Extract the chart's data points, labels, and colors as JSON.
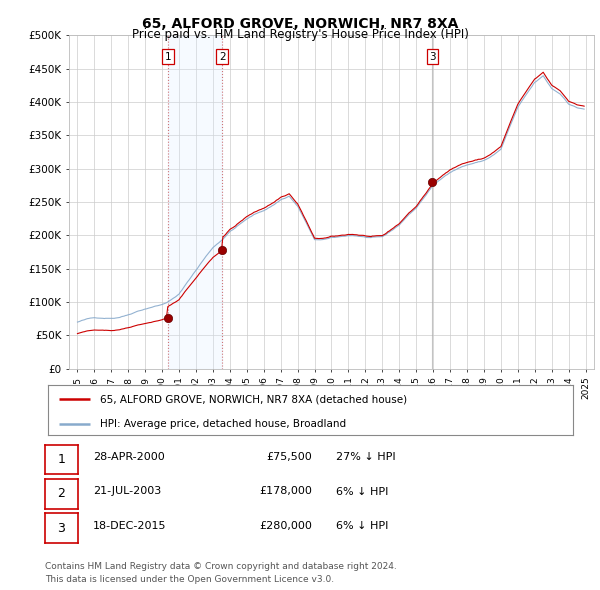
{
  "title": "65, ALFORD GROVE, NORWICH, NR7 8XA",
  "subtitle": "Price paid vs. HM Land Registry's House Price Index (HPI)",
  "background_color": "#ffffff",
  "plot_bg_color": "#ffffff",
  "grid_color": "#cccccc",
  "transactions": [
    {
      "label": "1",
      "date": "28-APR-2000",
      "price": 75500,
      "pct": "27% ↓ HPI",
      "x": 2000.33
    },
    {
      "label": "2",
      "date": "21-JUL-2003",
      "price": 178000,
      "pct": "6% ↓ HPI",
      "x": 2003.55
    },
    {
      "label": "3",
      "date": "18-DEC-2015",
      "price": 280000,
      "pct": "6% ↓ HPI",
      "x": 2015.96
    }
  ],
  "legend_line1": "65, ALFORD GROVE, NORWICH, NR7 8XA (detached house)",
  "legend_line2": "HPI: Average price, detached house, Broadland",
  "footer1": "Contains HM Land Registry data © Crown copyright and database right 2024.",
  "footer2": "This data is licensed under the Open Government Licence v3.0.",
  "red_line_color": "#cc0000",
  "blue_line_color": "#88aacc",
  "shade_color": "#ddeeff",
  "vline1_color": "#cc6666",
  "vline2_color": "#cc6666",
  "vline3_color": "#aaaaaa",
  "ylim": [
    0,
    500000
  ],
  "yticks": [
    0,
    50000,
    100000,
    150000,
    200000,
    250000,
    300000,
    350000,
    400000,
    450000,
    500000
  ],
  "ytick_labels": [
    "£0",
    "£50K",
    "£100K",
    "£150K",
    "£200K",
    "£250K",
    "£300K",
    "£350K",
    "£400K",
    "£450K",
    "£500K"
  ],
  "xlim": [
    1994.5,
    2025.5
  ]
}
